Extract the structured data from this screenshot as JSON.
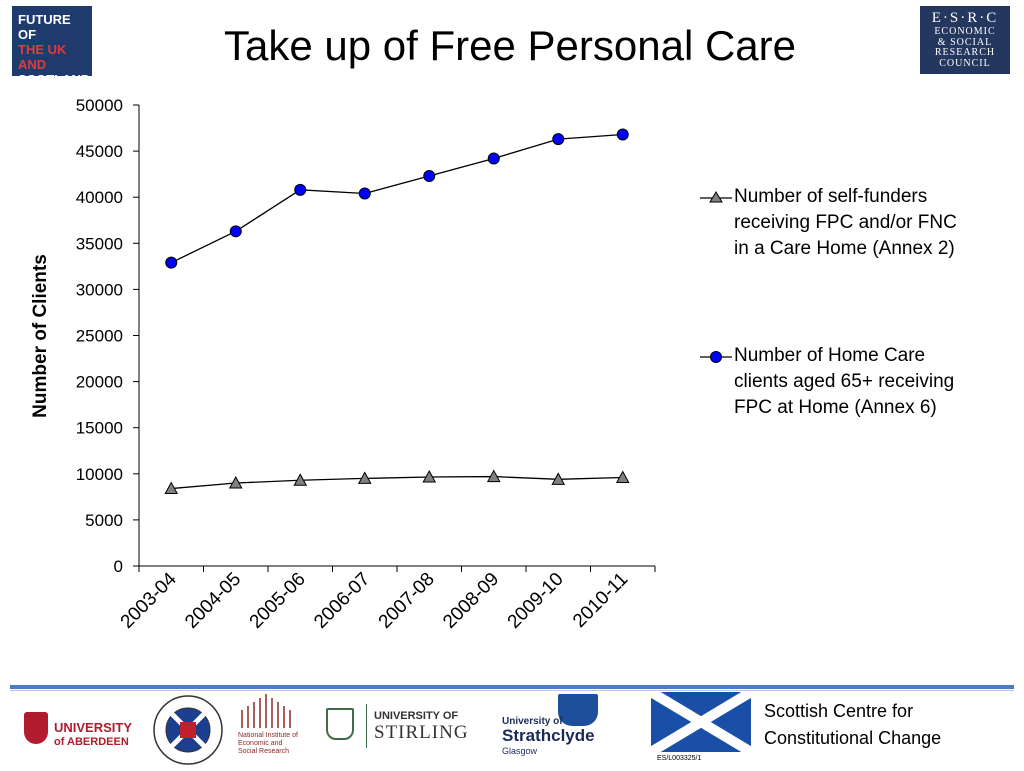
{
  "header": {
    "title": "Take up of Free Personal Care",
    "logo_left": {
      "line1": "FUTURE OF",
      "line2": "THE UK AND",
      "line3": "SCOTLAND"
    },
    "logo_right": {
      "line1": "E·S·R·C",
      "line2": "ECONOMIC",
      "line3": "& SOCIAL",
      "line4": "RESEARCH",
      "line5": "COUNCIL"
    }
  },
  "chart_data": {
    "type": "line",
    "title": "",
    "xlabel": "",
    "ylabel": "Number of Clients",
    "categories": [
      "2003-04",
      "2004-05",
      "2005-06",
      "2006-07",
      "2007-08",
      "2008-09",
      "2009-10",
      "2010-11"
    ],
    "ylim": [
      0,
      50000
    ],
    "yticks": [
      0,
      5000,
      10000,
      15000,
      20000,
      25000,
      30000,
      35000,
      40000,
      45000,
      50000
    ],
    "grid": false,
    "legend_position": "right",
    "series": [
      {
        "name": "Number of self-funders receiving FPC and/or FNC in a Care Home (Annex 2)",
        "marker": "triangle",
        "color": "#808080",
        "values": [
          8400,
          9000,
          9300,
          9500,
          9650,
          9700,
          9400,
          9600
        ]
      },
      {
        "name": "Number of Home Care clients aged 65+ receiving FPC at Home (Annex 6)",
        "marker": "circle",
        "color": "#0000ff",
        "values": [
          32900,
          36300,
          40800,
          40400,
          42300,
          44200,
          46300,
          46800
        ]
      }
    ]
  },
  "legend": {
    "item1_line1": "Number of self-funders",
    "item1_line2": "receiving FPC and/or FNC",
    "item1_line3": "in a Care Home (Annex 2)",
    "item2_line1": "Number of Home Care",
    "item2_line2": "clients aged 65+ receiving",
    "item2_line3": "FPC at Home (Annex 6)"
  },
  "footer": {
    "aberdeen_line1": "UNIVERSITY",
    "aberdeen_line2": "of ABERDEEN",
    "niesr_text": "National Institute of Economic and Social Research",
    "stirling_line1": "UNIVERSITY OF",
    "stirling_line2": "STIRLING",
    "strathclyde_line1": "University of",
    "strathclyde_line2": "Strathclyde",
    "strathclyde_line3": "Glasgow",
    "centre_line1": "Scottish Centre for",
    "centre_line2": "Constitutional Change",
    "code": "ES/L003325/1"
  }
}
